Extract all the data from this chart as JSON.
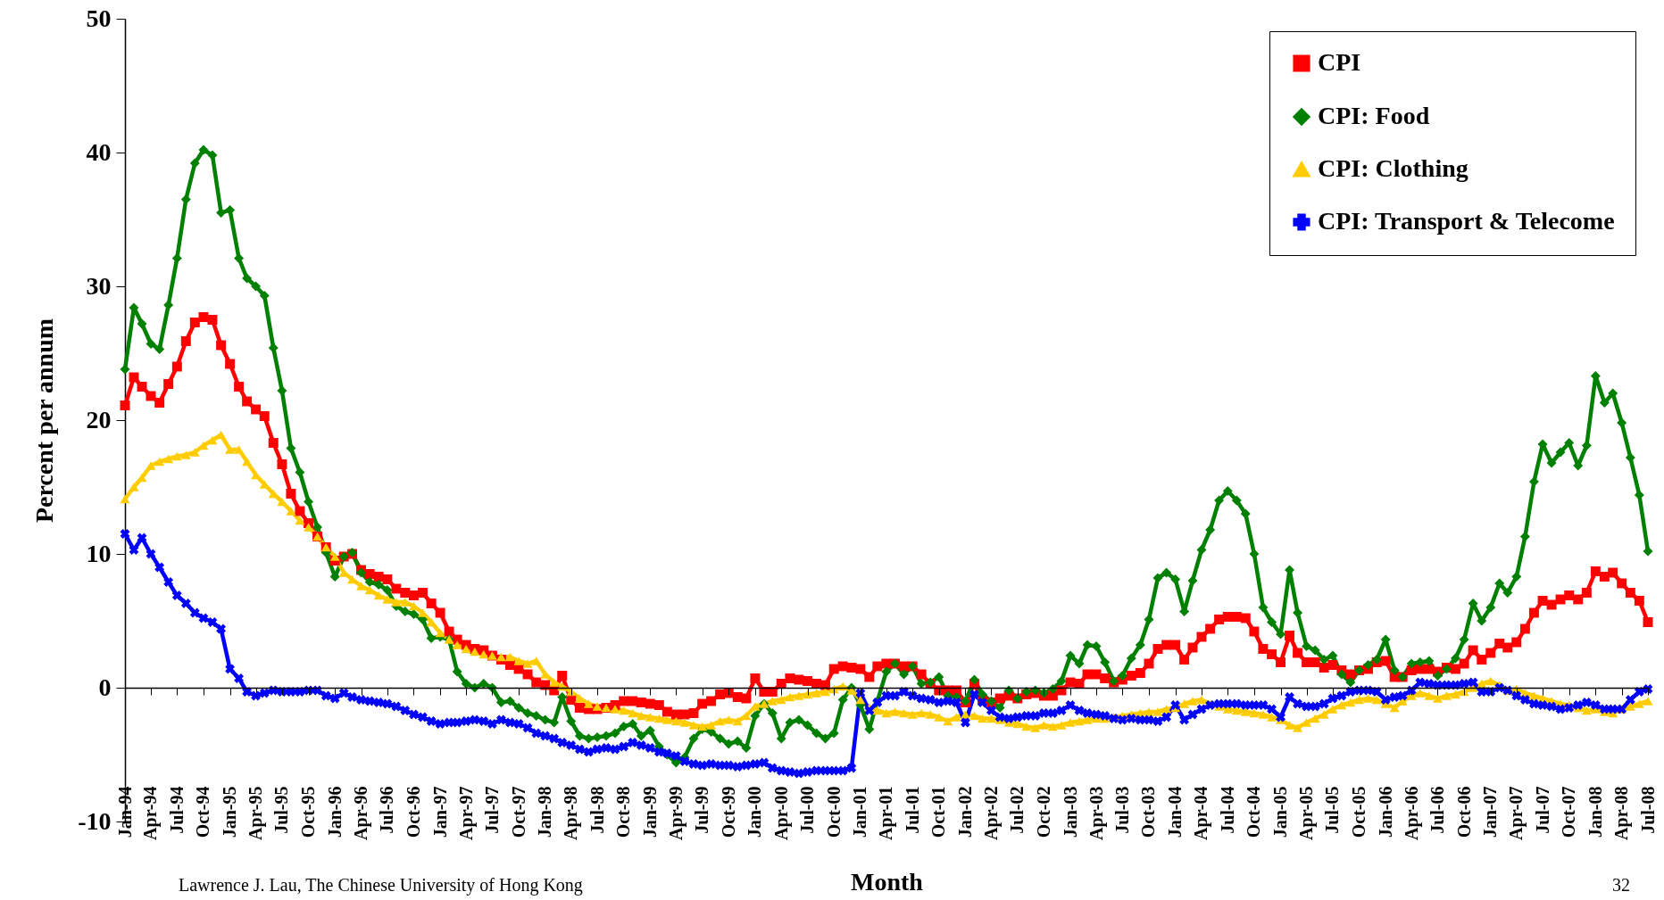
{
  "chart_data": {
    "type": "line",
    "xlabel": "Month",
    "ylabel": "Percent per annum",
    "legend": "top right",
    "line_style": "solid",
    "annotations": [
      "Lawrence J. Lau, The Chinese University of Hong Kong",
      "32"
    ],
    "x": [
      "1994-01",
      "1994-02",
      "1994-03",
      "1994-04",
      "1994-05",
      "1994-06",
      "1994-07",
      "1994-08",
      "1994-09",
      "1994-10",
      "1994-11",
      "1994-12",
      "1995-01",
      "1995-02",
      "1995-03",
      "1995-04",
      "1995-05",
      "1995-06",
      "1995-07",
      "1995-08",
      "1995-09",
      "1995-10",
      "1995-11",
      "1995-12",
      "1996-01",
      "1996-02",
      "1996-03",
      "1996-04",
      "1996-05",
      "1996-06",
      "1996-07",
      "1996-08",
      "1996-09",
      "1996-10",
      "1996-11",
      "1996-12",
      "1997-01",
      "1997-02",
      "1997-03",
      "1997-04",
      "1997-05",
      "1997-06",
      "1997-07",
      "1997-08",
      "1997-09",
      "1997-10",
      "1997-11",
      "1997-12",
      "1998-01",
      "1998-02",
      "1998-03",
      "1998-04",
      "1998-05",
      "1998-06",
      "1998-07",
      "1998-08",
      "1998-09",
      "1998-10",
      "1998-11",
      "1998-12",
      "1999-01",
      "1999-02",
      "1999-03",
      "1999-04",
      "1999-05",
      "1999-06",
      "1999-07",
      "1999-08",
      "1999-09",
      "1999-10",
      "1999-11",
      "1999-12",
      "2000-01",
      "2000-02",
      "2000-03",
      "2000-04",
      "2000-05",
      "2000-06",
      "2000-07",
      "2000-08",
      "2000-09",
      "2000-10",
      "2000-11",
      "2000-12",
      "2001-01",
      "2001-02",
      "2001-03",
      "2001-04",
      "2001-05",
      "2001-06",
      "2001-07",
      "2001-08",
      "2001-09",
      "2001-10",
      "2001-11",
      "2001-12",
      "2002-01",
      "2002-02",
      "2002-03",
      "2002-04",
      "2002-05",
      "2002-06",
      "2002-07",
      "2002-08",
      "2002-09",
      "2002-10",
      "2002-11",
      "2002-12",
      "2003-01",
      "2003-02",
      "2003-03",
      "2003-04",
      "2003-05",
      "2003-06",
      "2003-07",
      "2003-08",
      "2003-09",
      "2003-10",
      "2003-11",
      "2003-12",
      "2004-01",
      "2004-02",
      "2004-03",
      "2004-04",
      "2004-05",
      "2004-06",
      "2004-07",
      "2004-08",
      "2004-09",
      "2004-10",
      "2004-11",
      "2004-12",
      "2005-01",
      "2005-02",
      "2005-03",
      "2005-04",
      "2005-05",
      "2005-06",
      "2005-07",
      "2005-08",
      "2005-09",
      "2005-10",
      "2005-11",
      "2005-12",
      "2006-01",
      "2006-02",
      "2006-03",
      "2006-04",
      "2006-05",
      "2006-06",
      "2006-07",
      "2006-08",
      "2006-09",
      "2006-10",
      "2006-11",
      "2006-12",
      "2007-01",
      "2007-02",
      "2007-03",
      "2007-04",
      "2007-05",
      "2007-06",
      "2007-07",
      "2007-08",
      "2007-09",
      "2007-10",
      "2007-11",
      "2007-12",
      "2008-01",
      "2008-02",
      "2008-03",
      "2008-04",
      "2008-05",
      "2008-06",
      "2008-07"
    ],
    "xlim": [
      "1994-01",
      "2008-07"
    ],
    "xticks": [
      {
        "value": "1994-01",
        "label": "Jan-94"
      },
      {
        "value": "1994-04",
        "label": "Apr-94"
      },
      {
        "value": "1994-07",
        "label": "Jul-94"
      },
      {
        "value": "1994-10",
        "label": "Oct-94"
      },
      {
        "value": "1995-01",
        "label": "Jan-95"
      },
      {
        "value": "1995-04",
        "label": "Apr-95"
      },
      {
        "value": "1995-07",
        "label": "Jul-95"
      },
      {
        "value": "1995-10",
        "label": "Oct-95"
      },
      {
        "value": "1996-01",
        "label": "Jan-96"
      },
      {
        "value": "1996-04",
        "label": "Apr-96"
      },
      {
        "value": "1996-07",
        "label": "Jul-96"
      },
      {
        "value": "1996-10",
        "label": "Oct-96"
      },
      {
        "value": "1997-01",
        "label": "Jan-97"
      },
      {
        "value": "1997-04",
        "label": "Apr-97"
      },
      {
        "value": "1997-07",
        "label": "Jul-97"
      },
      {
        "value": "1997-10",
        "label": "Oct-97"
      },
      {
        "value": "1998-01",
        "label": "Jan-98"
      },
      {
        "value": "1998-04",
        "label": "Apr-98"
      },
      {
        "value": "1998-07",
        "label": "Jul-98"
      },
      {
        "value": "1998-10",
        "label": "Oct-98"
      },
      {
        "value": "1999-01",
        "label": "Jan-99"
      },
      {
        "value": "1999-04",
        "label": "Apr-99"
      },
      {
        "value": "1999-07",
        "label": "Jul-99"
      },
      {
        "value": "1999-10",
        "label": "Oct-99"
      },
      {
        "value": "2000-01",
        "label": "Jan-00"
      },
      {
        "value": "2000-04",
        "label": "Apr-00"
      },
      {
        "value": "2000-07",
        "label": "Jul-00"
      },
      {
        "value": "2000-10",
        "label": "Oct-00"
      },
      {
        "value": "2001-01",
        "label": "Jan-01"
      },
      {
        "value": "2001-04",
        "label": "Apr-01"
      },
      {
        "value": "2001-07",
        "label": "Jul-01"
      },
      {
        "value": "2001-10",
        "label": "Oct-01"
      },
      {
        "value": "2002-01",
        "label": "Jan-02"
      },
      {
        "value": "2002-04",
        "label": "Apr-02"
      },
      {
        "value": "2002-07",
        "label": "Jul-02"
      },
      {
        "value": "2002-10",
        "label": "Oct-02"
      },
      {
        "value": "2003-01",
        "label": "Jan-03"
      },
      {
        "value": "2003-04",
        "label": "Apr-03"
      },
      {
        "value": "2003-07",
        "label": "Jul-03"
      },
      {
        "value": "2003-10",
        "label": "Oct-03"
      },
      {
        "value": "2004-01",
        "label": "Jan-04"
      },
      {
        "value": "2004-04",
        "label": "Apr-04"
      },
      {
        "value": "2004-07",
        "label": "Jul-04"
      },
      {
        "value": "2004-10",
        "label": "Oct-04"
      },
      {
        "value": "2005-01",
        "label": "Jan-05"
      },
      {
        "value": "2005-04",
        "label": "Apr-05"
      },
      {
        "value": "2005-07",
        "label": "Jul-05"
      },
      {
        "value": "2005-10",
        "label": "Oct-05"
      },
      {
        "value": "2006-01",
        "label": "Jan-06"
      },
      {
        "value": "2006-04",
        "label": "Apr-06"
      },
      {
        "value": "2006-07",
        "label": "Jul-06"
      },
      {
        "value": "2006-10",
        "label": "Oct-06"
      },
      {
        "value": "2007-01",
        "label": "Jan-07"
      },
      {
        "value": "2007-04",
        "label": "Apr-07"
      },
      {
        "value": "2007-07",
        "label": "Jul-07"
      },
      {
        "value": "2007-10",
        "label": "Oct-07"
      },
      {
        "value": "2008-01",
        "label": "Jan-08"
      },
      {
        "value": "2008-04",
        "label": "Apr-08"
      },
      {
        "value": "2008-07",
        "label": "Jul-08"
      }
    ],
    "ylim": [
      -10,
      50
    ],
    "yticks": [
      -10,
      0,
      10,
      20,
      30,
      40,
      50
    ],
    "series": [
      {
        "name": "CPI",
        "color": "#ff0000",
        "marker": "square",
        "values": [
          21.1,
          23.2,
          22.5,
          21.8,
          21.3,
          22.7,
          24.0,
          25.9,
          27.3,
          27.7,
          27.5,
          25.6,
          24.2,
          22.5,
          21.4,
          20.8,
          20.3,
          18.3,
          16.7,
          14.5,
          13.2,
          12.3,
          11.3,
          10.5,
          9.5,
          9.8,
          10.0,
          8.8,
          8.5,
          8.3,
          8.1,
          7.4,
          7.1,
          6.9,
          7.1,
          6.3,
          5.6,
          4.2,
          3.6,
          3.2,
          2.9,
          2.8,
          2.4,
          2.1,
          1.7,
          1.4,
          1.0,
          0.4,
          0.2,
          -0.2,
          0.9,
          -0.9,
          -1.5,
          -1.6,
          -1.6,
          -1.5,
          -1.3,
          -1.0,
          -1.0,
          -1.1,
          -1.2,
          -1.3,
          -1.8,
          -2.0,
          -2.0,
          -1.9,
          -1.2,
          -1.0,
          -0.5,
          -0.4,
          -0.7,
          -0.8,
          0.7,
          -0.3,
          -0.3,
          0.3,
          0.7,
          0.6,
          0.5,
          0.3,
          0.2,
          1.4,
          1.6,
          1.5,
          1.4,
          0.8,
          1.6,
          1.8,
          1.8,
          1.6,
          1.6,
          1.0,
          0.3,
          -0.2,
          -0.2,
          -0.2,
          -1.1,
          0.3,
          -0.9,
          -1.1,
          -0.8,
          -0.6,
          -0.8,
          -0.5,
          -0.4,
          -0.6,
          -0.6,
          -0.2,
          0.4,
          0.3,
          1.0,
          1.0,
          0.7,
          0.4,
          0.6,
          0.9,
          1.1,
          1.8,
          2.9,
          3.2,
          3.2,
          2.1,
          3.0,
          3.8,
          4.4,
          5.1,
          5.3,
          5.3,
          5.2,
          4.2,
          2.9,
          2.5,
          1.9,
          3.9,
          2.6,
          1.9,
          1.9,
          1.5,
          1.7,
          1.3,
          1.0,
          1.3,
          1.4,
          1.9,
          2.0,
          0.8,
          0.8,
          1.3,
          1.4,
          1.4,
          1.2,
          1.5,
          1.4,
          1.8,
          2.8,
          2.1,
          2.6,
          3.3,
          3.0,
          3.4,
          4.4,
          5.6,
          6.5,
          6.2,
          6.6,
          6.9,
          6.6,
          7.1,
          8.7,
          8.3,
          8.6,
          7.8,
          7.1,
          6.5,
          4.9
        ]
      },
      {
        "name": "CPI: Food",
        "color": "#008000",
        "marker": "diamond",
        "values": [
          23.8,
          28.4,
          27.2,
          25.7,
          25.3,
          28.6,
          32.1,
          36.5,
          39.2,
          40.2,
          39.8,
          35.5,
          35.7,
          32.1,
          30.6,
          30.0,
          29.3,
          25.4,
          22.2,
          17.9,
          16.1,
          13.9,
          12.0,
          10.1,
          8.3,
          9.8,
          10.1,
          8.6,
          7.9,
          7.7,
          7.3,
          6.1,
          5.7,
          5.5,
          5.1,
          3.7,
          3.8,
          3.6,
          1.2,
          0.3,
          0.0,
          0.3,
          0.0,
          -1.1,
          -1.0,
          -1.5,
          -1.9,
          -2.1,
          -2.4,
          -2.6,
          -0.7,
          -2.5,
          -3.6,
          -3.8,
          -3.7,
          -3.6,
          -3.4,
          -2.9,
          -2.7,
          -3.6,
          -3.2,
          -4.4,
          -5.0,
          -5.6,
          -5.2,
          -3.8,
          -3.1,
          -3.3,
          -3.8,
          -4.2,
          -4.0,
          -4.5,
          -2.1,
          -1.2,
          -1.9,
          -3.8,
          -2.6,
          -2.4,
          -2.8,
          -3.4,
          -3.8,
          -3.4,
          -0.9,
          0.0,
          -1.3,
          -3.1,
          -1.0,
          1.2,
          1.8,
          1.0,
          1.6,
          0.3,
          0.4,
          0.8,
          -0.6,
          -0.7,
          -1.0,
          0.6,
          -0.5,
          -1.0,
          -1.5,
          -0.2,
          -0.8,
          -0.3,
          -0.2,
          -0.4,
          -0.1,
          0.5,
          2.4,
          1.8,
          3.2,
          3.1,
          1.9,
          0.5,
          0.9,
          2.2,
          3.2,
          5.1,
          8.2,
          8.6,
          8.1,
          5.7,
          8.0,
          10.3,
          11.8,
          14.0,
          14.7,
          14.0,
          13.0,
          10.0,
          6.0,
          4.9,
          4.0,
          8.8,
          5.6,
          3.1,
          2.8,
          2.1,
          2.4,
          1.0,
          0.4,
          1.3,
          1.7,
          2.1,
          3.6,
          1.3,
          0.8,
          1.8,
          1.9,
          2.0,
          0.9,
          1.4,
          2.2,
          3.6,
          6.3,
          5.0,
          6.0,
          7.8,
          7.1,
          8.3,
          11.3,
          15.4,
          18.2,
          16.8,
          17.6,
          18.3,
          16.6,
          18.1,
          23.3,
          21.3,
          22.0,
          19.8,
          17.2,
          14.4,
          10.2
        ]
      },
      {
        "name": "CPI: Clothing",
        "color": "#ffcc00",
        "marker": "triangle",
        "values": [
          14.1,
          15.0,
          15.7,
          16.6,
          16.9,
          17.1,
          17.3,
          17.4,
          17.6,
          18.1,
          18.5,
          18.9,
          17.8,
          17.8,
          16.9,
          15.9,
          15.2,
          14.5,
          13.9,
          13.2,
          12.5,
          12.0,
          11.3,
          10.5,
          9.8,
          8.6,
          8.1,
          7.6,
          7.3,
          6.9,
          6.6,
          6.4,
          6.4,
          6.1,
          5.6,
          4.9,
          4.1,
          3.6,
          3.2,
          2.9,
          2.7,
          2.5,
          2.4,
          2.3,
          2.3,
          2.0,
          1.8,
          2.0,
          1.0,
          0.4,
          0.1,
          -0.3,
          -0.8,
          -1.2,
          -1.4,
          -1.5,
          -1.6,
          -1.7,
          -1.9,
          -2.1,
          -2.2,
          -2.3,
          -2.4,
          -2.5,
          -2.6,
          -2.8,
          -2.9,
          -2.8,
          -2.5,
          -2.4,
          -2.5,
          -2.1,
          -1.4,
          -1.2,
          -1.0,
          -0.9,
          -0.7,
          -0.6,
          -0.5,
          -0.4,
          -0.3,
          -0.1,
          0.1,
          -0.2,
          -0.9,
          -1.5,
          -1.7,
          -1.9,
          -1.8,
          -1.9,
          -2.0,
          -1.9,
          -2.0,
          -2.2,
          -2.5,
          -2.2,
          -2.0,
          -2.1,
          -2.3,
          -2.3,
          -2.4,
          -2.6,
          -2.7,
          -2.9,
          -3.0,
          -2.8,
          -2.9,
          -2.8,
          -2.6,
          -2.5,
          -2.4,
          -2.3,
          -2.3,
          -2.2,
          -2.1,
          -2.0,
          -1.9,
          -1.8,
          -1.8,
          -1.6,
          -1.5,
          -1.2,
          -1.0,
          -0.9,
          -1.2,
          -1.4,
          -1.6,
          -1.7,
          -1.8,
          -1.9,
          -2.0,
          -2.2,
          -2.4,
          -2.8,
          -3.0,
          -2.6,
          -2.3,
          -2.0,
          -1.6,
          -1.3,
          -1.1,
          -0.9,
          -0.8,
          -0.9,
          -1.2,
          -1.5,
          -1.0,
          -0.6,
          -0.4,
          -0.6,
          -0.8,
          -0.6,
          -0.5,
          -0.3,
          0.0,
          0.3,
          0.5,
          0.2,
          -0.2,
          -0.1,
          -0.4,
          -0.6,
          -0.8,
          -1.0,
          -1.2,
          -1.3,
          -1.5,
          -1.7,
          -1.6,
          -1.8,
          -1.9,
          -1.6,
          -1.4,
          -1.2,
          -1.0
        ]
      },
      {
        "name": "CPI: Transport & Telecome",
        "color": "#0000ff",
        "marker": "cross",
        "values": [
          11.5,
          10.3,
          11.2,
          10.0,
          9.0,
          7.9,
          6.9,
          6.3,
          5.6,
          5.2,
          4.9,
          4.4,
          1.4,
          0.7,
          -0.3,
          -0.6,
          -0.4,
          -0.2,
          -0.3,
          -0.3,
          -0.3,
          -0.2,
          -0.2,
          -0.6,
          -0.8,
          -0.4,
          -0.7,
          -0.9,
          -1.0,
          -1.1,
          -1.2,
          -1.4,
          -1.7,
          -2.0,
          -2.2,
          -2.5,
          -2.7,
          -2.6,
          -2.6,
          -2.5,
          -2.4,
          -2.5,
          -2.7,
          -2.4,
          -2.6,
          -2.7,
          -3.0,
          -3.4,
          -3.6,
          -3.8,
          -4.1,
          -4.3,
          -4.6,
          -4.8,
          -4.6,
          -4.5,
          -4.6,
          -4.4,
          -4.1,
          -4.3,
          -4.5,
          -4.8,
          -4.9,
          -5.1,
          -5.5,
          -5.7,
          -5.8,
          -5.7,
          -5.8,
          -5.8,
          -5.9,
          -5.8,
          -5.7,
          -5.6,
          -6.0,
          -6.2,
          -6.3,
          -6.4,
          -6.3,
          -6.2,
          -6.2,
          -6.2,
          -6.2,
          -6.0,
          -0.4,
          -1.7,
          -1.1,
          -0.6,
          -0.6,
          -0.3,
          -0.6,
          -0.8,
          -0.9,
          -1.1,
          -1.0,
          -1.1,
          -2.6,
          -0.5,
          -1.1,
          -1.7,
          -2.2,
          -2.3,
          -2.2,
          -2.1,
          -2.1,
          -1.9,
          -1.9,
          -1.7,
          -1.3,
          -1.7,
          -1.9,
          -2.0,
          -2.1,
          -2.3,
          -2.4,
          -2.3,
          -2.4,
          -2.4,
          -2.5,
          -2.2,
          -1.3,
          -2.4,
          -2.0,
          -1.6,
          -1.3,
          -1.2,
          -1.2,
          -1.2,
          -1.3,
          -1.3,
          -1.3,
          -1.6,
          -2.2,
          -0.7,
          -1.2,
          -1.4,
          -1.4,
          -1.2,
          -0.8,
          -0.6,
          -0.3,
          -0.2,
          -0.2,
          -0.3,
          -0.9,
          -0.7,
          -0.6,
          -0.2,
          0.4,
          0.3,
          0.2,
          0.2,
          0.2,
          0.3,
          0.4,
          -0.3,
          -0.3,
          0.0,
          -0.2,
          -0.6,
          -0.9,
          -1.2,
          -1.3,
          -1.4,
          -1.6,
          -1.5,
          -1.3,
          -1.1,
          -1.3,
          -1.6,
          -1.6,
          -1.6,
          -0.9,
          -0.3,
          -0.1
        ]
      }
    ]
  }
}
